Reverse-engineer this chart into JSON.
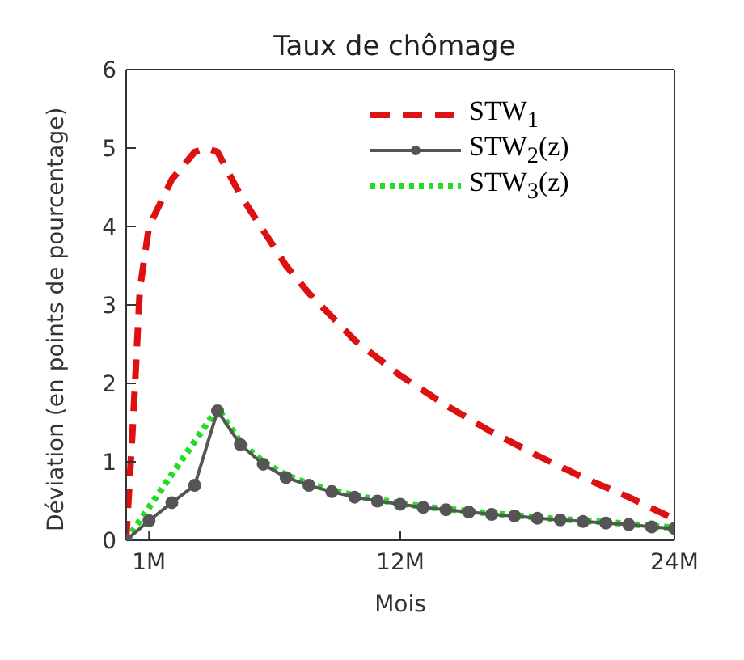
{
  "chart_data": {
    "type": "line",
    "title": "Taux de chômage",
    "xlabel": "Mois",
    "ylabel": "Déviation (en points de pourcentage)",
    "xlim": [
      0,
      24
    ],
    "xticks": [
      {
        "value": 1,
        "label": "1M"
      },
      {
        "value": 12,
        "label": "12M"
      },
      {
        "value": 24,
        "label": "24M"
      }
    ],
    "ylim": [
      0,
      6
    ],
    "yticks": [
      0,
      1,
      2,
      3,
      4,
      5,
      6
    ],
    "grid": false,
    "legend": "top right",
    "series": [
      {
        "name": "STW$_{1}$",
        "color": "#dd1111",
        "line_style": "dashed",
        "marker": "none",
        "x": [
          0,
          0.3,
          0.6,
          1,
          1.5,
          2,
          3,
          3.5,
          4,
          5,
          6,
          7,
          8,
          9,
          10,
          12,
          14,
          16,
          18,
          20,
          22,
          24
        ],
        "values": [
          0,
          1.5,
          3.2,
          4.0,
          4.3,
          4.6,
          4.95,
          5.0,
          4.95,
          4.4,
          3.95,
          3.5,
          3.15,
          2.85,
          2.55,
          2.1,
          1.72,
          1.38,
          1.08,
          0.8,
          0.55,
          0.27
        ]
      },
      {
        "name": "STW$_{2}$(z)",
        "color": "#555555",
        "line_style": "solid",
        "marker": "circle",
        "x": [
          0,
          1,
          2,
          3,
          4,
          5,
          6,
          7,
          8,
          9,
          10,
          11,
          12,
          13,
          14,
          15,
          16,
          17,
          18,
          19,
          20,
          21,
          22,
          23,
          24
        ],
        "values": [
          0,
          0.25,
          0.48,
          0.7,
          1.65,
          1.22,
          0.97,
          0.8,
          0.7,
          0.62,
          0.55,
          0.5,
          0.46,
          0.42,
          0.39,
          0.36,
          0.33,
          0.31,
          0.28,
          0.26,
          0.24,
          0.22,
          0.2,
          0.17,
          0.15
        ]
      },
      {
        "name": "STW$_{3}$(z)",
        "color": "#22dd22",
        "line_style": "dotted",
        "marker": "none",
        "x": [
          0,
          4,
          5,
          6,
          7,
          8,
          9,
          10,
          11,
          12,
          13,
          14,
          15,
          16,
          17,
          18,
          19,
          20,
          21,
          22,
          23,
          24
        ],
        "values": [
          0,
          1.68,
          1.25,
          1.0,
          0.83,
          0.72,
          0.64,
          0.57,
          0.52,
          0.47,
          0.43,
          0.4,
          0.37,
          0.34,
          0.32,
          0.29,
          0.27,
          0.25,
          0.23,
          0.21,
          0.18,
          0.16
        ]
      }
    ]
  }
}
